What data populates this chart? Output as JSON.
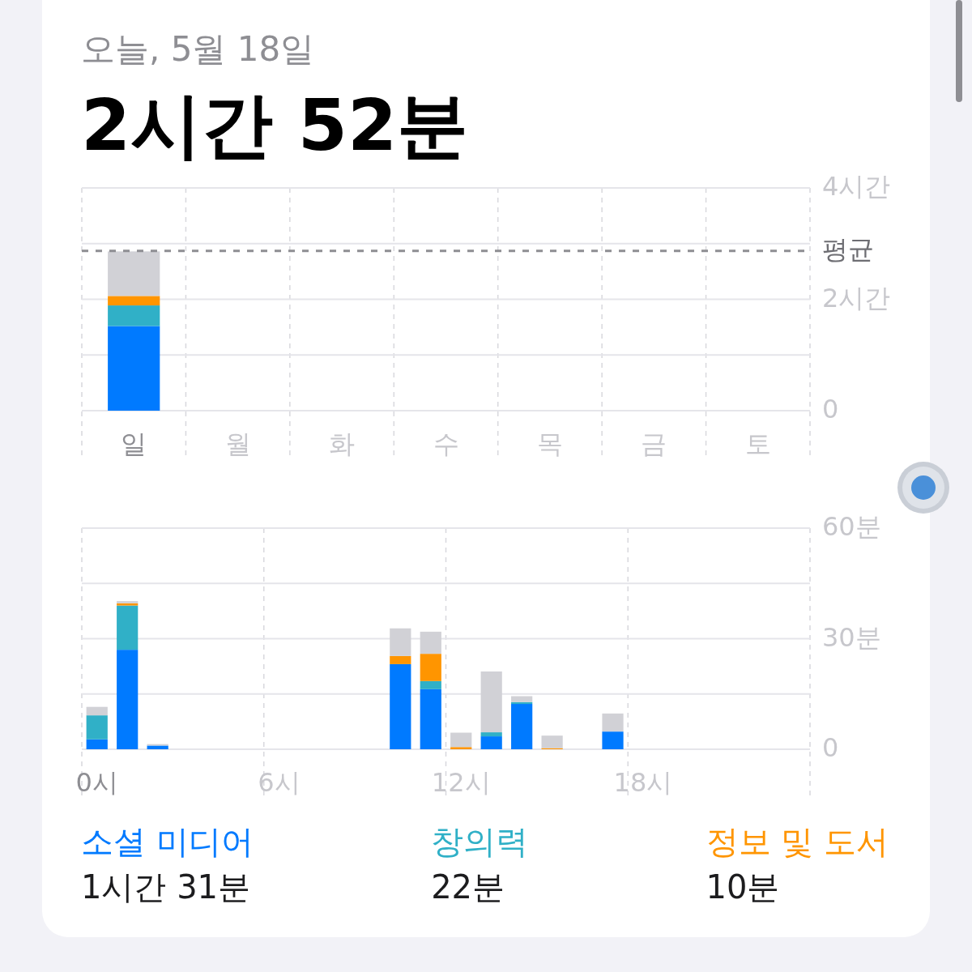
{
  "chart_data": [
    {
      "type": "bar",
      "title": "2시간 52분",
      "subtitle": "오늘, 5월 18일",
      "categories": [
        "일",
        "월",
        "화",
        "수",
        "목",
        "금",
        "토"
      ],
      "stacked": true,
      "series": [
        {
          "color": "#007aff",
          "values": [
            1.52,
            null,
            null,
            null,
            null,
            null,
            null
          ]
        },
        {
          "color": "#30b0c7",
          "values": [
            0.37,
            null,
            null,
            null,
            null,
            null,
            null
          ]
        },
        {
          "color": "#ff9500",
          "values": [
            0.17,
            null,
            null,
            null,
            null,
            null,
            null
          ]
        },
        {
          "color": "#d1d1d6",
          "values": [
            0.8,
            null,
            null,
            null,
            null,
            null,
            null
          ]
        }
      ],
      "ylim": [
        0,
        4
      ],
      "yticks": [
        0,
        {
          "value": 1,
          "label": null
        },
        {
          "value": 2,
          "label": "2시간"
        },
        {
          "value": 3,
          "label": null
        },
        {
          "value": 4,
          "label": "4시간"
        }
      ],
      "grid": true,
      "ref_lines": [
        {
          "axis": "y",
          "value": 2.87,
          "label": "평균",
          "color": "#8e8e93",
          "line_style": "dashed"
        }
      ]
    },
    {
      "type": "bar",
      "categories": [
        "0시",
        null,
        null,
        null,
        null,
        null,
        "6시",
        null,
        null,
        null,
        null,
        null,
        "12시",
        null,
        null,
        null,
        null,
        null,
        "18시",
        null,
        null,
        null,
        null,
        null
      ],
      "stacked": true,
      "series": [
        {
          "name": "소셜 미디어",
          "color": "#007aff",
          "values": [
            2.7,
            27,
            1,
            0,
            0,
            0,
            0,
            0,
            0,
            0,
            23.1,
            16.3,
            0,
            3.5,
            12.3,
            0,
            0,
            4.8,
            0,
            0,
            0,
            0,
            0,
            0
          ]
        },
        {
          "name": "창의력",
          "color": "#30b0c7",
          "values": [
            6.5,
            12,
            0,
            0,
            0,
            0,
            0,
            0,
            0,
            0,
            0,
            2.2,
            0,
            1.1,
            0.5,
            0,
            0,
            0,
            0,
            0,
            0,
            0,
            0,
            0
          ]
        },
        {
          "name": "정보 및 도서",
          "color": "#ff9500",
          "values": [
            0,
            0.6,
            0,
            0,
            0,
            0,
            0,
            0,
            0,
            0,
            2.2,
            7.4,
            0.6,
            0,
            0,
            0.3,
            0,
            0,
            0,
            0,
            0,
            0,
            0,
            0
          ]
        },
        {
          "color": "#d1d1d6",
          "values": [
            2.3,
            0.6,
            0.4,
            0,
            0,
            0,
            0,
            0,
            0,
            0,
            7.5,
            6,
            3.9,
            16.5,
            1.6,
            3.4,
            0,
            4.9,
            0,
            0,
            0,
            0,
            0,
            0
          ]
        }
      ],
      "ylim": [
        0,
        60
      ],
      "yticks": [
        0,
        {
          "value": 15,
          "label": null
        },
        {
          "value": 30,
          "label": "30분"
        },
        {
          "value": 45,
          "label": null
        },
        {
          "value": 60,
          "label": "60분"
        }
      ],
      "grid": true,
      "legend": "bottom",
      "annotations": [
        "1시간 31분",
        "22분",
        "10분"
      ]
    }
  ]
}
